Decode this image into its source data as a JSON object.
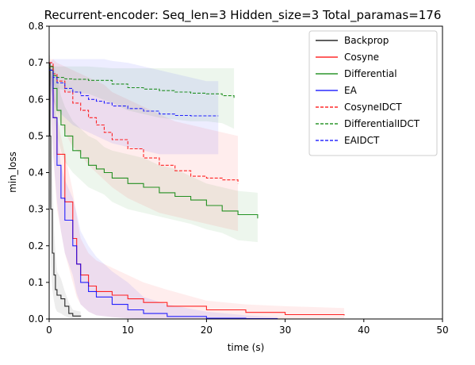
{
  "chart_data": {
    "type": "line",
    "title": "Recurrent-encoder: Seq_len=3 Hidden_size=3 Total_paramas=176",
    "xlabel": "time (s)",
    "ylabel": "min_loss",
    "xlim": [
      0,
      50
    ],
    "ylim": [
      0,
      0.8
    ],
    "x_ticks": [
      0,
      10,
      20,
      30,
      40,
      50
    ],
    "y_ticks": [
      0.0,
      0.1,
      0.2,
      0.3,
      0.4,
      0.5,
      0.6,
      0.7,
      0.8
    ],
    "x_tick_labels": [
      "0",
      "10",
      "20",
      "30",
      "40",
      "50"
    ],
    "y_tick_labels": [
      "0.0",
      "0.1",
      "0.2",
      "0.3",
      "0.4",
      "0.5",
      "0.6",
      "0.7",
      "0.8"
    ],
    "grid": false,
    "legend_position": "top-right",
    "series": [
      {
        "name": "Backprop",
        "color": "#000000",
        "dash": "solid",
        "x": [
          0,
          0.1,
          0.2,
          0.4,
          0.6,
          0.8,
          1.0,
          1.5,
          2.0,
          2.5,
          3.0,
          4.0
        ],
        "y": [
          0.7,
          0.5,
          0.3,
          0.18,
          0.12,
          0.08,
          0.065,
          0.055,
          0.035,
          0.015,
          0.008,
          0.007
        ],
        "lower": [
          0.7,
          0.3,
          0.15,
          0.08,
          0.05,
          0.03,
          0.02,
          0.015,
          0.008,
          0.004,
          0.002,
          0.001
        ],
        "upper": [
          0.72,
          0.72,
          0.6,
          0.4,
          0.25,
          0.18,
          0.13,
          0.11,
          0.075,
          0.045,
          0.025,
          0.02
        ]
      },
      {
        "name": "Cosyne",
        "color": "#ff0000",
        "dash": "solid",
        "x": [
          0,
          0.5,
          1,
          2,
          3,
          3.5,
          4,
          5,
          6,
          8,
          10,
          12,
          15,
          20,
          25,
          30,
          37.5
        ],
        "y": [
          0.69,
          0.55,
          0.45,
          0.32,
          0.22,
          0.15,
          0.12,
          0.09,
          0.075,
          0.065,
          0.055,
          0.045,
          0.035,
          0.025,
          0.018,
          0.012,
          0.01
        ],
        "lower": [
          0.65,
          0.45,
          0.3,
          0.18,
          0.1,
          0.06,
          0.04,
          0.02,
          0.01,
          0.005,
          0.002,
          0.001,
          0.0,
          0.0,
          0.0,
          0.0,
          0.0
        ],
        "upper": [
          0.7,
          0.65,
          0.55,
          0.45,
          0.35,
          0.28,
          0.22,
          0.18,
          0.16,
          0.14,
          0.12,
          0.1,
          0.08,
          0.05,
          0.04,
          0.035,
          0.03
        ]
      },
      {
        "name": "Differential",
        "color": "#008000",
        "dash": "solid",
        "x": [
          0,
          0.5,
          1,
          1.5,
          2,
          3,
          4,
          5,
          6,
          7,
          8,
          10,
          12,
          14,
          16,
          18,
          20,
          22,
          24,
          26.5
        ],
        "y": [
          0.69,
          0.63,
          0.57,
          0.53,
          0.5,
          0.46,
          0.44,
          0.42,
          0.41,
          0.4,
          0.385,
          0.37,
          0.36,
          0.345,
          0.335,
          0.325,
          0.31,
          0.295,
          0.285,
          0.275
        ],
        "lower": [
          0.67,
          0.57,
          0.5,
          0.46,
          0.43,
          0.4,
          0.38,
          0.36,
          0.35,
          0.34,
          0.32,
          0.3,
          0.29,
          0.28,
          0.27,
          0.26,
          0.245,
          0.235,
          0.215,
          0.21
        ],
        "upper": [
          0.7,
          0.69,
          0.66,
          0.61,
          0.58,
          0.54,
          0.52,
          0.5,
          0.49,
          0.47,
          0.46,
          0.45,
          0.44,
          0.42,
          0.41,
          0.39,
          0.37,
          0.36,
          0.35,
          0.345
        ]
      },
      {
        "name": "EA",
        "color": "#0000ff",
        "dash": "solid",
        "x": [
          0,
          0.5,
          1,
          1.5,
          2,
          3,
          3.5,
          4,
          5,
          6,
          8,
          10,
          12,
          15,
          20,
          25,
          29
        ],
        "y": [
          0.68,
          0.55,
          0.42,
          0.33,
          0.27,
          0.2,
          0.15,
          0.1,
          0.075,
          0.06,
          0.04,
          0.025,
          0.015,
          0.007,
          0.002,
          0.001,
          0.0
        ],
        "lower": [
          0.66,
          0.45,
          0.32,
          0.24,
          0.18,
          0.12,
          0.07,
          0.04,
          0.02,
          0.01,
          0.005,
          0.002,
          0.0,
          0.0,
          0.0,
          0.0,
          0.0
        ],
        "upper": [
          0.7,
          0.64,
          0.52,
          0.42,
          0.38,
          0.33,
          0.29,
          0.24,
          0.2,
          0.17,
          0.13,
          0.1,
          0.06,
          0.04,
          0.02,
          0.01,
          0.005
        ]
      },
      {
        "name": "CosyneIDCT",
        "color": "#ff0000",
        "dash": "dashed",
        "x": [
          0,
          0.5,
          1,
          2,
          3,
          4,
          5,
          6,
          7,
          8,
          10,
          12,
          14,
          16,
          18,
          20,
          22,
          24
        ],
        "y": [
          0.7,
          0.67,
          0.65,
          0.62,
          0.59,
          0.57,
          0.55,
          0.53,
          0.51,
          0.49,
          0.465,
          0.44,
          0.42,
          0.405,
          0.39,
          0.385,
          0.38,
          0.37
        ],
        "lower": [
          0.68,
          0.6,
          0.56,
          0.51,
          0.47,
          0.45,
          0.42,
          0.4,
          0.38,
          0.36,
          0.33,
          0.31,
          0.29,
          0.28,
          0.27,
          0.26,
          0.25,
          0.24
        ],
        "upper": [
          0.71,
          0.71,
          0.7,
          0.69,
          0.68,
          0.67,
          0.66,
          0.65,
          0.64,
          0.62,
          0.6,
          0.58,
          0.56,
          0.54,
          0.53,
          0.52,
          0.51,
          0.5
        ]
      },
      {
        "name": "DifferentialIDCT",
        "color": "#008000",
        "dash": "dashed",
        "x": [
          0,
          0.5,
          1,
          2,
          3,
          5,
          8,
          10,
          12,
          14,
          16,
          18,
          20,
          22,
          23.5
        ],
        "y": [
          0.68,
          0.665,
          0.66,
          0.656,
          0.655,
          0.652,
          0.642,
          0.632,
          0.628,
          0.624,
          0.62,
          0.617,
          0.615,
          0.61,
          0.603
        ],
        "lower": [
          0.67,
          0.64,
          0.63,
          0.625,
          0.62,
          0.615,
          0.59,
          0.57,
          0.56,
          0.55,
          0.545,
          0.54,
          0.54,
          0.535,
          0.52
        ],
        "upper": [
          0.69,
          0.69,
          0.69,
          0.69,
          0.69,
          0.69,
          0.685,
          0.685,
          0.685,
          0.685,
          0.685,
          0.685,
          0.685,
          0.685,
          0.685
        ]
      },
      {
        "name": "EAIDCT",
        "color": "#0000ff",
        "dash": "dashed",
        "x": [
          0,
          0.5,
          1,
          2,
          3,
          4,
          5,
          6,
          7,
          8,
          10,
          12,
          14,
          16,
          18,
          20,
          21.5
        ],
        "y": [
          0.68,
          0.66,
          0.645,
          0.63,
          0.62,
          0.61,
          0.6,
          0.595,
          0.59,
          0.582,
          0.575,
          0.568,
          0.56,
          0.556,
          0.555,
          0.555,
          0.555
        ],
        "lower": [
          0.66,
          0.6,
          0.57,
          0.55,
          0.53,
          0.52,
          0.51,
          0.5,
          0.49,
          0.48,
          0.47,
          0.46,
          0.45,
          0.45,
          0.45,
          0.45,
          0.45
        ],
        "upper": [
          0.7,
          0.71,
          0.71,
          0.71,
          0.71,
          0.71,
          0.71,
          0.71,
          0.71,
          0.705,
          0.7,
          0.69,
          0.68,
          0.67,
          0.66,
          0.65,
          0.65
        ]
      }
    ]
  }
}
